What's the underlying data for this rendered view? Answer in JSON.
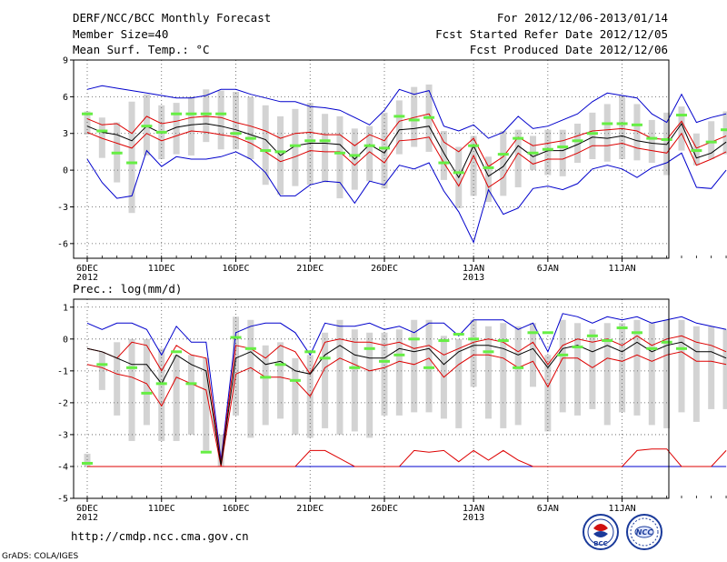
{
  "header": {
    "title": "DERF/NCC/BCC Monthly Forecast",
    "member_size": "Member Size=40",
    "variable": "Mean Surf. Temp.: °C",
    "forecast_period": "For 2012/12/06-2013/01/14",
    "started_refer": "Fcst Started Refer Date 2012/12/05",
    "produced": "Fcst Produced Date 2012/12/06"
  },
  "footer": {
    "url": "http://cmdp.ncc.cma.gov.cn",
    "credit": "GrADS: COLA/IGES",
    "logo_left": "BCC",
    "logo_right": "NCC"
  },
  "colors": {
    "box": "#d3d3d3",
    "median": "#000000",
    "quartile": "#dd0000",
    "extreme": "#0000cc",
    "obs": "#66ee44",
    "grid": "#555555"
  },
  "chart_data": [
    {
      "type": "box-line",
      "title": "Mean Surf. Temp.: °C",
      "ylabel": "°C",
      "ylim": [
        -7.2,
        9
      ],
      "yticks": [
        9,
        6,
        3,
        0,
        -3,
        -6
      ],
      "x_start_day": 0,
      "x_end_day": 39,
      "xticks": [
        {
          "day": 0,
          "label": "6DEC",
          "year": "2012"
        },
        {
          "day": 5,
          "label": "11DEC"
        },
        {
          "day": 10,
          "label": "16DEC"
        },
        {
          "day": 15,
          "label": "21DEC"
        },
        {
          "day": 20,
          "label": "26DEC"
        },
        {
          "day": 26,
          "label": "1JAN",
          "year": "2013"
        },
        {
          "day": 31,
          "label": "6JAN"
        },
        {
          "day": 36,
          "label": "11JAN"
        }
      ],
      "series": {
        "max": [
          6.6,
          6.9,
          6.7,
          6.5,
          6.3,
          6.1,
          5.9,
          5.9,
          6.1,
          6.6,
          6.6,
          6.2,
          5.9,
          5.6,
          5.6,
          5.2,
          5.1,
          4.9,
          4.3,
          3.7,
          4.9,
          6.6,
          6.2,
          6.5,
          3.6,
          3.2,
          3.7,
          2.6,
          3.1,
          4.4,
          3.4,
          3.6,
          4.1,
          4.6,
          5.6,
          6.3,
          6.1,
          5.9,
          4.6,
          3.9,
          6.2,
          3.9,
          4.3,
          4.6
        ],
        "q75": [
          4.2,
          3.7,
          3.8,
          3.0,
          4.4,
          3.8,
          4.0,
          4.3,
          4.4,
          4.3,
          3.9,
          3.6,
          3.2,
          2.6,
          3.0,
          3.1,
          2.9,
          2.9,
          2.0,
          2.9,
          2.4,
          4.0,
          4.3,
          4.6,
          2.3,
          1.5,
          2.6,
          0.3,
          1.1,
          2.7,
          2.0,
          2.2,
          2.4,
          2.8,
          3.2,
          3.3,
          3.4,
          3.2,
          2.6,
          2.5,
          4.0,
          1.8,
          2.3,
          2.8
        ],
        "median": [
          3.6,
          3.1,
          2.9,
          2.4,
          3.6,
          3.0,
          3.5,
          3.7,
          3.8,
          3.6,
          3.3,
          2.9,
          2.5,
          1.2,
          2.0,
          2.2,
          2.2,
          2.1,
          0.9,
          2.1,
          1.4,
          3.3,
          3.4,
          3.6,
          1.4,
          -0.6,
          2.0,
          -0.5,
          0.3,
          2.0,
          1.1,
          1.6,
          1.6,
          2.1,
          2.7,
          2.6,
          2.8,
          2.4,
          2.2,
          2.1,
          3.8,
          1.0,
          1.4,
          2.3
        ],
        "q25": [
          3.1,
          2.6,
          2.2,
          1.8,
          3.0,
          2.4,
          2.8,
          3.2,
          3.1,
          2.9,
          2.7,
          2.2,
          1.5,
          0.7,
          1.1,
          1.6,
          1.5,
          1.5,
          0.4,
          1.5,
          0.6,
          2.4,
          2.5,
          2.7,
          0.6,
          -1.3,
          1.2,
          -1.4,
          -0.6,
          1.4,
          0.5,
          0.9,
          0.9,
          1.4,
          2.0,
          2.0,
          2.2,
          1.8,
          1.6,
          1.4,
          3.0,
          0.4,
          0.9,
          1.5
        ],
        "min": [
          0.9,
          -1.0,
          -2.3,
          -2.1,
          1.6,
          0.3,
          1.1,
          0.9,
          0.9,
          1.1,
          1.5,
          0.9,
          -0.2,
          -2.1,
          -2.1,
          -1.2,
          -0.9,
          -1.0,
          -2.7,
          -0.9,
          -1.2,
          0.4,
          0.1,
          0.6,
          -1.7,
          -3.4,
          -5.9,
          -1.6,
          -3.6,
          -3.1,
          -1.5,
          -1.3,
          -1.6,
          -1.1,
          0.1,
          0.4,
          0.1,
          -0.6,
          0.2,
          0.6,
          1.4,
          -1.4,
          -1.5,
          0.0
        ],
        "box_top": [
          4.8,
          4.3,
          3.9,
          5.6,
          6.2,
          5.3,
          5.5,
          6.0,
          6.6,
          6.5,
          6.4,
          6.0,
          5.3,
          4.4,
          5.0,
          5.5,
          4.6,
          4.4,
          3.4,
          3.6,
          4.7,
          5.7,
          6.8,
          7.0,
          3.2,
          1.9,
          2.8,
          1.1,
          3.2,
          3.3,
          2.8,
          3.3,
          3.3,
          3.8,
          4.7,
          5.4,
          6.1,
          5.4,
          4.1,
          4.7,
          5.2,
          3.0,
          4.0,
          4.8
        ],
        "box_bottom": [
          2.9,
          1.0,
          -1.0,
          -3.5,
          1.2,
          0.9,
          1.3,
          1.2,
          2.3,
          1.7,
          1.7,
          0.9,
          -1.2,
          -2.0,
          -1.3,
          -1.2,
          -1.0,
          -2.3,
          -1.6,
          -0.9,
          -1.5,
          1.3,
          1.9,
          1.5,
          -0.8,
          -3.1,
          -2.1,
          -2.6,
          -2.1,
          -1.4,
          0.0,
          -0.4,
          -0.5,
          0.6,
          0.9,
          0.7,
          0.9,
          0.8,
          0.6,
          -0.4,
          1.6,
          0.4,
          0.9,
          1.3
        ],
        "obs": [
          4.6,
          3.2,
          1.4,
          0.6,
          3.6,
          3.1,
          4.6,
          4.6,
          4.6,
          4.6,
          3.0,
          2.6,
          1.6,
          1.5,
          2.0,
          2.4,
          2.4,
          1.4,
          1.2,
          2.0,
          1.8,
          4.4,
          4.1,
          4.3,
          0.6,
          -0.2,
          2.0,
          0.2,
          1.3,
          2.6,
          1.4,
          1.7,
          1.9,
          2.4,
          3.0,
          3.8,
          3.8,
          3.7,
          2.6,
          2.5,
          4.5,
          1.6,
          2.3,
          3.3
        ]
      }
    },
    {
      "type": "box-line",
      "title": "Prec.: log(mm/d)",
      "ylabel": "log(mm/d)",
      "ylim": [
        -5,
        1.25
      ],
      "yticks": [
        1,
        0,
        -1,
        -2,
        -3,
        -4,
        -5
      ],
      "x_start_day": 0,
      "x_end_day": 39,
      "xticks": [
        {
          "day": 0,
          "label": "6DEC",
          "year": "2012"
        },
        {
          "day": 5,
          "label": "11DEC"
        },
        {
          "day": 10,
          "label": "16DEC"
        },
        {
          "day": 15,
          "label": "21DEC"
        },
        {
          "day": 20,
          "label": "26DEC"
        },
        {
          "day": 26,
          "label": "1JAN",
          "year": "2013"
        },
        {
          "day": 31,
          "label": "6JAN"
        },
        {
          "day": 36,
          "label": "11JAN"
        }
      ],
      "series": {
        "max": [
          0.5,
          0.3,
          0.5,
          0.5,
          0.3,
          -0.5,
          0.4,
          -0.1,
          -0.1,
          -3.8,
          0.2,
          0.4,
          0.5,
          0.5,
          0.2,
          -0.5,
          0.5,
          0.4,
          0.4,
          0.5,
          0.3,
          0.4,
          0.2,
          0.5,
          0.5,
          0.1,
          0.6,
          0.6,
          0.6,
          0.3,
          0.5,
          -0.4,
          0.8,
          0.7,
          0.5,
          0.7,
          0.6,
          0.7,
          0.5,
          0.6,
          0.7,
          0.5,
          0.4,
          0.3
        ],
        "q75": [
          -0.3,
          -0.4,
          -0.6,
          -0.1,
          -0.2,
          -1.0,
          -0.2,
          -0.5,
          -0.6,
          -3.9,
          -0.2,
          -0.3,
          -0.6,
          -0.2,
          -0.4,
          -1.1,
          -0.1,
          0.0,
          -0.1,
          -0.1,
          -0.2,
          -0.1,
          -0.3,
          -0.2,
          -0.5,
          -0.3,
          -0.1,
          0.0,
          -0.1,
          -0.4,
          -0.1,
          -0.8,
          -0.2,
          0.0,
          -0.1,
          0.0,
          -0.2,
          0.1,
          -0.2,
          0.0,
          0.1,
          -0.1,
          -0.2,
          -0.4
        ],
        "median": [
          -0.3,
          -0.4,
          -0.6,
          -0.8,
          -0.8,
          -1.4,
          -0.5,
          -0.8,
          -1.0,
          -3.95,
          -0.6,
          -0.4,
          -0.8,
          -0.7,
          -1.0,
          -1.1,
          -0.5,
          -0.2,
          -0.5,
          -0.6,
          -0.6,
          -0.3,
          -0.4,
          -0.3,
          -0.8,
          -0.4,
          -0.2,
          -0.2,
          -0.3,
          -0.5,
          -0.3,
          -0.9,
          -0.3,
          -0.2,
          -0.4,
          -0.2,
          -0.4,
          -0.1,
          -0.4,
          -0.2,
          -0.1,
          -0.4,
          -0.4,
          -0.6
        ],
        "q25": [
          -0.8,
          -0.9,
          -1.1,
          -1.2,
          -1.4,
          -2.1,
          -1.2,
          -1.4,
          -1.6,
          -4.0,
          -1.1,
          -0.9,
          -1.2,
          -1.2,
          -1.3,
          -1.8,
          -0.9,
          -0.6,
          -0.8,
          -1.0,
          -0.9,
          -0.7,
          -0.8,
          -0.6,
          -1.2,
          -0.8,
          -0.5,
          -0.5,
          -0.6,
          -0.9,
          -0.7,
          -1.5,
          -0.6,
          -0.6,
          -0.9,
          -0.6,
          -0.7,
          -0.5,
          -0.7,
          -0.5,
          -0.4,
          -0.7,
          -0.7,
          -0.8
        ],
        "low_q": [
          -4.0,
          -4.0,
          -4.0,
          -4.0,
          -4.0,
          -4.0,
          -4.0,
          -4.0,
          -4.0,
          -4.0,
          -4.0,
          -4.0,
          -4.0,
          -4.0,
          -4.0,
          -3.5,
          -3.5,
          -3.75,
          -4.0,
          -4.0,
          -4.0,
          -4.0,
          -3.5,
          -3.55,
          -3.5,
          -3.85,
          -3.5,
          -3.8,
          -3.5,
          -3.8,
          -4.0,
          -4.0,
          -4.0,
          -4.0,
          -4.0,
          -4.0,
          -4.0,
          -3.5,
          -3.45,
          -3.45,
          -4.0,
          -4.0,
          -4.0,
          -3.5
        ],
        "min": [
          -4.0,
          -4.0,
          -4.0,
          -4.0,
          -4.0,
          -4.0,
          -4.0,
          -4.0,
          -4.0,
          -4.0,
          -4.0,
          -4.0,
          -4.0,
          -4.0,
          -4.0,
          -4.0,
          -4.0,
          -4.0,
          -4.0,
          -4.0,
          -4.0,
          -4.0,
          -4.0,
          -4.0,
          -4.0,
          -4.0,
          -4.0,
          -4.0,
          -4.0,
          -4.0,
          -4.0,
          -4.0,
          -4.0,
          -4.0,
          -4.0,
          -4.0,
          -4.0,
          -4.0,
          -4.0,
          -4.0,
          -4.0,
          -4.0,
          -4.0,
          -4.0
        ],
        "box_top": [
          -3.6,
          -0.4,
          -0.1,
          0.0,
          0.0,
          -0.3,
          -0.5,
          -0.5,
          -0.6,
          -3.0,
          0.7,
          0.6,
          -0.2,
          -0.1,
          -0.6,
          -0.5,
          0.2,
          0.6,
          0.3,
          0.2,
          0.2,
          0.3,
          0.6,
          0.6,
          0.1,
          0.0,
          0.6,
          0.4,
          0.5,
          0.4,
          0.5,
          -0.5,
          0.6,
          0.5,
          0.3,
          0.5,
          0.5,
          0.6,
          0.5,
          0.6,
          0.6,
          0.4,
          0.4,
          0.3
        ],
        "box_bottom": [
          -4.0,
          -1.6,
          -2.4,
          -3.2,
          -2.7,
          -3.2,
          -3.2,
          -3.0,
          -3.5,
          -4.0,
          -2.4,
          -3.1,
          -2.7,
          -2.5,
          -3.0,
          -3.1,
          -2.8,
          -3.0,
          -2.9,
          -3.1,
          -2.4,
          -2.4,
          -2.3,
          -2.3,
          -2.5,
          -2.8,
          -1.5,
          -2.5,
          -2.8,
          -2.7,
          -1.5,
          -2.9,
          -2.3,
          -2.4,
          -2.2,
          -2.7,
          -2.3,
          -2.4,
          -2.7,
          -2.8,
          -2.3,
          -2.6,
          -2.2,
          -2.2
        ],
        "obs": [
          -3.9,
          -0.8,
          null,
          -0.9,
          -1.7,
          -1.4,
          -0.4,
          -1.4,
          -3.55,
          null,
          0.05,
          -0.3,
          -1.2,
          -0.8,
          -1.3,
          -0.4,
          -0.6,
          null,
          -0.9,
          -0.3,
          -0.7,
          -0.5,
          0.0,
          -0.9,
          -0.05,
          0.15,
          0.0,
          -0.4,
          -0.05,
          -0.9,
          0.2,
          0.2,
          -0.5,
          -0.25,
          0.1,
          -0.05,
          0.35,
          0.2,
          -0.3,
          -0.1,
          -0.3,
          null,
          null,
          null
        ]
      }
    }
  ]
}
